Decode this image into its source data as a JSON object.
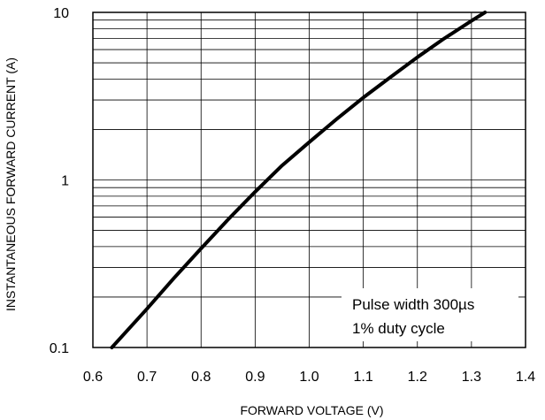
{
  "chart_data": {
    "type": "line",
    "xlabel": "FORWARD VOLTAGE (V)",
    "ylabel": "INSTANTANEOUS FORWARD CURRENT (A)",
    "xlim": [
      0.6,
      1.4
    ],
    "ylim": [
      0.1,
      10
    ],
    "yscale": "log",
    "grid": true,
    "x_ticks": [
      0.6,
      0.7,
      0.8,
      0.9,
      1.0,
      1.1,
      1.2,
      1.3,
      1.4
    ],
    "x_tick_labels": [
      "0.6",
      "0.7",
      "0.8",
      "0.9",
      "1.0",
      "1.1",
      "1.2",
      "1.3",
      "1.4"
    ],
    "y_ticks": [
      0.1,
      1,
      10
    ],
    "y_tick_labels": [
      "0.1",
      "1",
      "10"
    ],
    "annotations": [
      "Pulse width 300µs",
      "1% duty cycle"
    ],
    "series": [
      {
        "x": [
          0.635,
          0.7,
          0.75,
          0.8,
          0.85,
          0.9,
          0.95,
          1.0,
          1.05,
          1.1,
          1.15,
          1.2,
          1.25,
          1.3,
          1.325
        ],
        "values": [
          0.1,
          0.17,
          0.26,
          0.39,
          0.58,
          0.85,
          1.22,
          1.68,
          2.3,
          3.1,
          4.1,
          5.4,
          7.0,
          8.9,
          10.0
        ]
      }
    ]
  }
}
